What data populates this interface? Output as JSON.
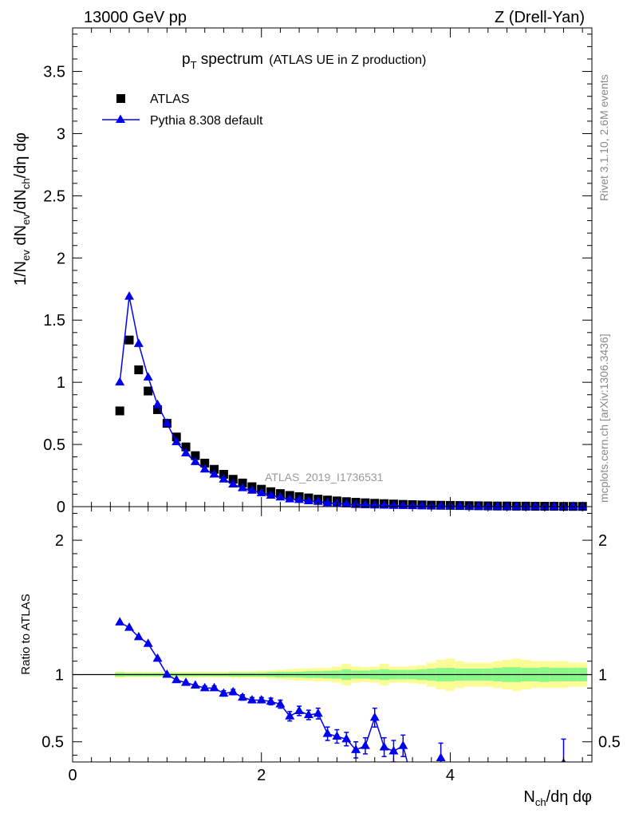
{
  "header": {
    "left": "13000 GeV pp",
    "right": "Z (Drell-Yan)"
  },
  "side_labels": {
    "rivet": "Rivet 3.1.10,  2.6M events",
    "mcplots": "mcplots.cern.ch [arXiv:1306.3436]"
  },
  "title": {
    "main": "p",
    "main_sub": "T",
    "main_rest": " spectrum",
    "note": "(ATLAS UE in Z production)"
  },
  "analysis_id": "ATLAS_2019_I1736531",
  "colors": {
    "data": "#000000",
    "mc": "#0000ee",
    "band_inner": "#88f888",
    "band_outer": "#fcfc96"
  },
  "chart_data": [
    {
      "type": "scatter",
      "panel": "main",
      "ylabel": "1/N_ev dN_ev/dN_ch/dη dφ",
      "xlim": [
        0,
        5.5
      ],
      "ylim": [
        0,
        3.85
      ],
      "yticks": [
        "0",
        "0.5",
        "1",
        "1.5",
        "2",
        "2.5",
        "3",
        "3.5"
      ],
      "legend_position": "top-left",
      "series": [
        {
          "name": "ATLAS",
          "marker": "square",
          "x": [
            0.5,
            0.6,
            0.7,
            0.8,
            0.9,
            1.0,
            1.1,
            1.2,
            1.3,
            1.4,
            1.5,
            1.6,
            1.7,
            1.8,
            1.9,
            2.0,
            2.1,
            2.2,
            2.3,
            2.4,
            2.5,
            2.6,
            2.7,
            2.8,
            2.9,
            3.0,
            3.1,
            3.2,
            3.3,
            3.4,
            3.5,
            3.6,
            3.7,
            3.8,
            3.9,
            4.0,
            4.1,
            4.2,
            4.3,
            4.4,
            4.5,
            4.6,
            4.7,
            4.8,
            4.9,
            5.0,
            5.1,
            5.2,
            5.3,
            5.4
          ],
          "y": [
            0.77,
            1.34,
            1.1,
            0.93,
            0.78,
            0.67,
            0.56,
            0.48,
            0.41,
            0.35,
            0.3,
            0.26,
            0.22,
            0.19,
            0.16,
            0.14,
            0.12,
            0.105,
            0.09,
            0.08,
            0.07,
            0.06,
            0.053,
            0.046,
            0.04,
            0.035,
            0.031,
            0.027,
            0.024,
            0.021,
            0.018,
            0.016,
            0.014,
            0.012,
            0.011,
            0.01,
            0.009,
            0.008,
            0.007,
            0.006,
            0.005,
            0.005,
            0.004,
            0.004,
            0.003,
            0.003,
            0.003,
            0.002,
            0.002,
            0.002
          ]
        },
        {
          "name": "Pythia 8.308 default",
          "marker": "triangle",
          "x": [
            0.5,
            0.6,
            0.7,
            0.8,
            0.9,
            1.0,
            1.1,
            1.2,
            1.3,
            1.4,
            1.5,
            1.6,
            1.7,
            1.8,
            1.9,
            2.0,
            2.1,
            2.2,
            2.3,
            2.4,
            2.5,
            2.6,
            2.7,
            2.8,
            2.9,
            3.0,
            3.1,
            3.2,
            3.3,
            3.4,
            3.5,
            3.6,
            3.7,
            3.8,
            3.9,
            4.0,
            4.1,
            4.2,
            4.3,
            4.4,
            4.5,
            4.6,
            4.7,
            4.8,
            4.9,
            5.0,
            5.1,
            5.2,
            5.3,
            5.4
          ],
          "y": [
            1.0,
            1.69,
            1.31,
            1.04,
            0.82,
            0.67,
            0.52,
            0.43,
            0.36,
            0.3,
            0.26,
            0.22,
            0.18,
            0.15,
            0.13,
            0.11,
            0.09,
            0.075,
            0.06,
            0.055,
            0.045,
            0.04,
            0.03,
            0.025,
            0.02,
            0.015,
            0.013,
            0.011,
            0.01,
            0.008,
            0.007,
            0.006,
            0.005,
            0.004,
            0.004,
            0.003,
            0.003,
            0.002,
            0.002,
            0.002,
            0.001,
            0.001,
            0.001,
            0.001,
            0.001,
            0.001,
            0.001,
            0.001,
            0.001,
            0.001
          ]
        }
      ]
    },
    {
      "type": "scatter",
      "panel": "ratio",
      "ylabel": "Ratio to ATLAS",
      "xlabel": "N_ch/dη dφ",
      "xlim": [
        0,
        5.5
      ],
      "ylim": [
        0.35,
        2.25
      ],
      "xticks": [
        "0",
        "2",
        "4"
      ],
      "yticks": [
        "0.5",
        "1",
        "2"
      ],
      "reference": 1,
      "band_x_edges": [
        0.45,
        0.55,
        0.65,
        0.75,
        0.85,
        0.95,
        1.05,
        1.15,
        1.25,
        1.35,
        1.45,
        1.55,
        1.65,
        1.75,
        1.85,
        1.95,
        2.05,
        2.15,
        2.25,
        2.35,
        2.45,
        2.55,
        2.65,
        2.75,
        2.85,
        2.95,
        3.05,
        3.15,
        3.25,
        3.35,
        3.45,
        3.55,
        3.65,
        3.75,
        3.85,
        3.95,
        4.05,
        4.15,
        4.25,
        4.35,
        4.45,
        4.55,
        4.65,
        4.75,
        4.85,
        4.95,
        5.05,
        5.15,
        5.25,
        5.35,
        5.45
      ],
      "band_inner_half": [
        0.015,
        0.012,
        0.012,
        0.012,
        0.012,
        0.012,
        0.012,
        0.012,
        0.012,
        0.012,
        0.012,
        0.012,
        0.015,
        0.015,
        0.015,
        0.015,
        0.018,
        0.02,
        0.02,
        0.022,
        0.025,
        0.025,
        0.028,
        0.03,
        0.04,
        0.03,
        0.03,
        0.035,
        0.04,
        0.035,
        0.035,
        0.035,
        0.04,
        0.045,
        0.05,
        0.05,
        0.045,
        0.045,
        0.045,
        0.045,
        0.05,
        0.055,
        0.055,
        0.05,
        0.05,
        0.055,
        0.05,
        0.05,
        0.05,
        0.05
      ],
      "band_outer_half": [
        0.025,
        0.02,
        0.02,
        0.02,
        0.02,
        0.02,
        0.02,
        0.022,
        0.022,
        0.022,
        0.022,
        0.022,
        0.025,
        0.025,
        0.025,
        0.028,
        0.03,
        0.035,
        0.04,
        0.045,
        0.045,
        0.05,
        0.05,
        0.06,
        0.08,
        0.06,
        0.055,
        0.06,
        0.08,
        0.06,
        0.06,
        0.065,
        0.07,
        0.09,
        0.11,
        0.12,
        0.1,
        0.09,
        0.09,
        0.09,
        0.1,
        0.11,
        0.12,
        0.11,
        0.1,
        0.1,
        0.1,
        0.1,
        0.09,
        0.09
      ],
      "series": [
        {
          "name": "Pythia 8.308 default",
          "marker": "triangle",
          "x": [
            0.5,
            0.6,
            0.7,
            0.8,
            0.9,
            1.0,
            1.1,
            1.2,
            1.3,
            1.4,
            1.5,
            1.6,
            1.7,
            1.8,
            1.9,
            2.0,
            2.1,
            2.2,
            2.3,
            2.4,
            2.5,
            2.6,
            2.7,
            2.8,
            2.9,
            3.0,
            3.1,
            3.2,
            3.3,
            3.4,
            3.5,
            3.9,
            5.2
          ],
          "y": [
            1.39,
            1.35,
            1.28,
            1.23,
            1.12,
            1.0,
            0.96,
            0.94,
            0.92,
            0.9,
            0.9,
            0.86,
            0.87,
            0.83,
            0.81,
            0.81,
            0.8,
            0.78,
            0.69,
            0.73,
            0.7,
            0.71,
            0.56,
            0.54,
            0.52,
            0.44,
            0.47,
            0.68,
            0.46,
            0.43,
            0.47,
            0.38,
            0.34
          ],
          "err": [
            0.01,
            0.01,
            0.01,
            0.01,
            0.01,
            0.01,
            0.01,
            0.01,
            0.01,
            0.015,
            0.015,
            0.02,
            0.02,
            0.02,
            0.02,
            0.02,
            0.025,
            0.03,
            0.035,
            0.035,
            0.035,
            0.04,
            0.05,
            0.05,
            0.05,
            0.06,
            0.06,
            0.07,
            0.07,
            0.08,
            0.08,
            0.11,
            0.18
          ]
        }
      ]
    }
  ]
}
